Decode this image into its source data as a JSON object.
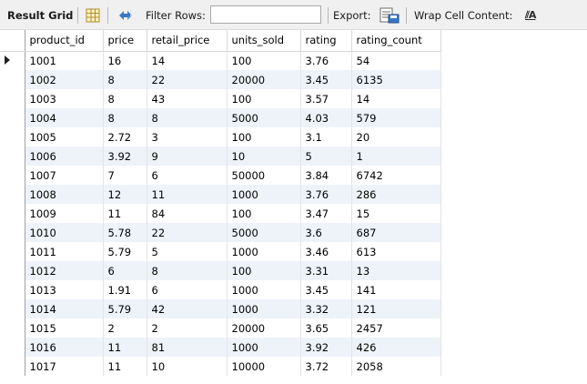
{
  "toolbar": {
    "result_grid_label": "Result Grid",
    "filter_rows_label": "Filter Rows:",
    "filter_value": "",
    "export_label": "Export:",
    "wrap_cell_label": "Wrap Cell Content:",
    "wrap_icon_glyph": "⫽A",
    "icons": [
      "grid-view-icon",
      "refresh-icon",
      "export-icon",
      "wrap-cell-icon"
    ]
  },
  "table": {
    "columns": [
      "product_id",
      "price",
      "retail_price",
      "units_sold",
      "rating",
      "rating_count"
    ],
    "rows": [
      [
        "1001",
        "16",
        "14",
        "100",
        "3.76",
        "54"
      ],
      [
        "1002",
        "8",
        "22",
        "20000",
        "3.45",
        "6135"
      ],
      [
        "1003",
        "8",
        "43",
        "100",
        "3.57",
        "14"
      ],
      [
        "1004",
        "8",
        "8",
        "5000",
        "4.03",
        "579"
      ],
      [
        "1005",
        "2.72",
        "3",
        "100",
        "3.1",
        "20"
      ],
      [
        "1006",
        "3.92",
        "9",
        "10",
        "5",
        "1"
      ],
      [
        "1007",
        "7",
        "6",
        "50000",
        "3.84",
        "6742"
      ],
      [
        "1008",
        "12",
        "11",
        "1000",
        "3.76",
        "286"
      ],
      [
        "1009",
        "11",
        "84",
        "100",
        "3.47",
        "15"
      ],
      [
        "1010",
        "5.78",
        "22",
        "5000",
        "3.6",
        "687"
      ],
      [
        "1011",
        "5.79",
        "5",
        "1000",
        "3.46",
        "613"
      ],
      [
        "1012",
        "6",
        "8",
        "100",
        "3.31",
        "13"
      ],
      [
        "1013",
        "1.91",
        "6",
        "1000",
        "3.45",
        "141"
      ],
      [
        "1014",
        "5.79",
        "42",
        "1000",
        "3.32",
        "121"
      ],
      [
        "1015",
        "2",
        "2",
        "20000",
        "3.65",
        "2457"
      ],
      [
        "1016",
        "11",
        "81",
        "1000",
        "3.92",
        "426"
      ],
      [
        "1017",
        "11",
        "10",
        "10000",
        "3.72",
        "2058"
      ]
    ],
    "current_row": 0
  },
  "colors": {
    "toolbar_bg": "#f0f0f0",
    "alt_row": "#eef3fa",
    "icon_blue": "#3a78c2"
  }
}
